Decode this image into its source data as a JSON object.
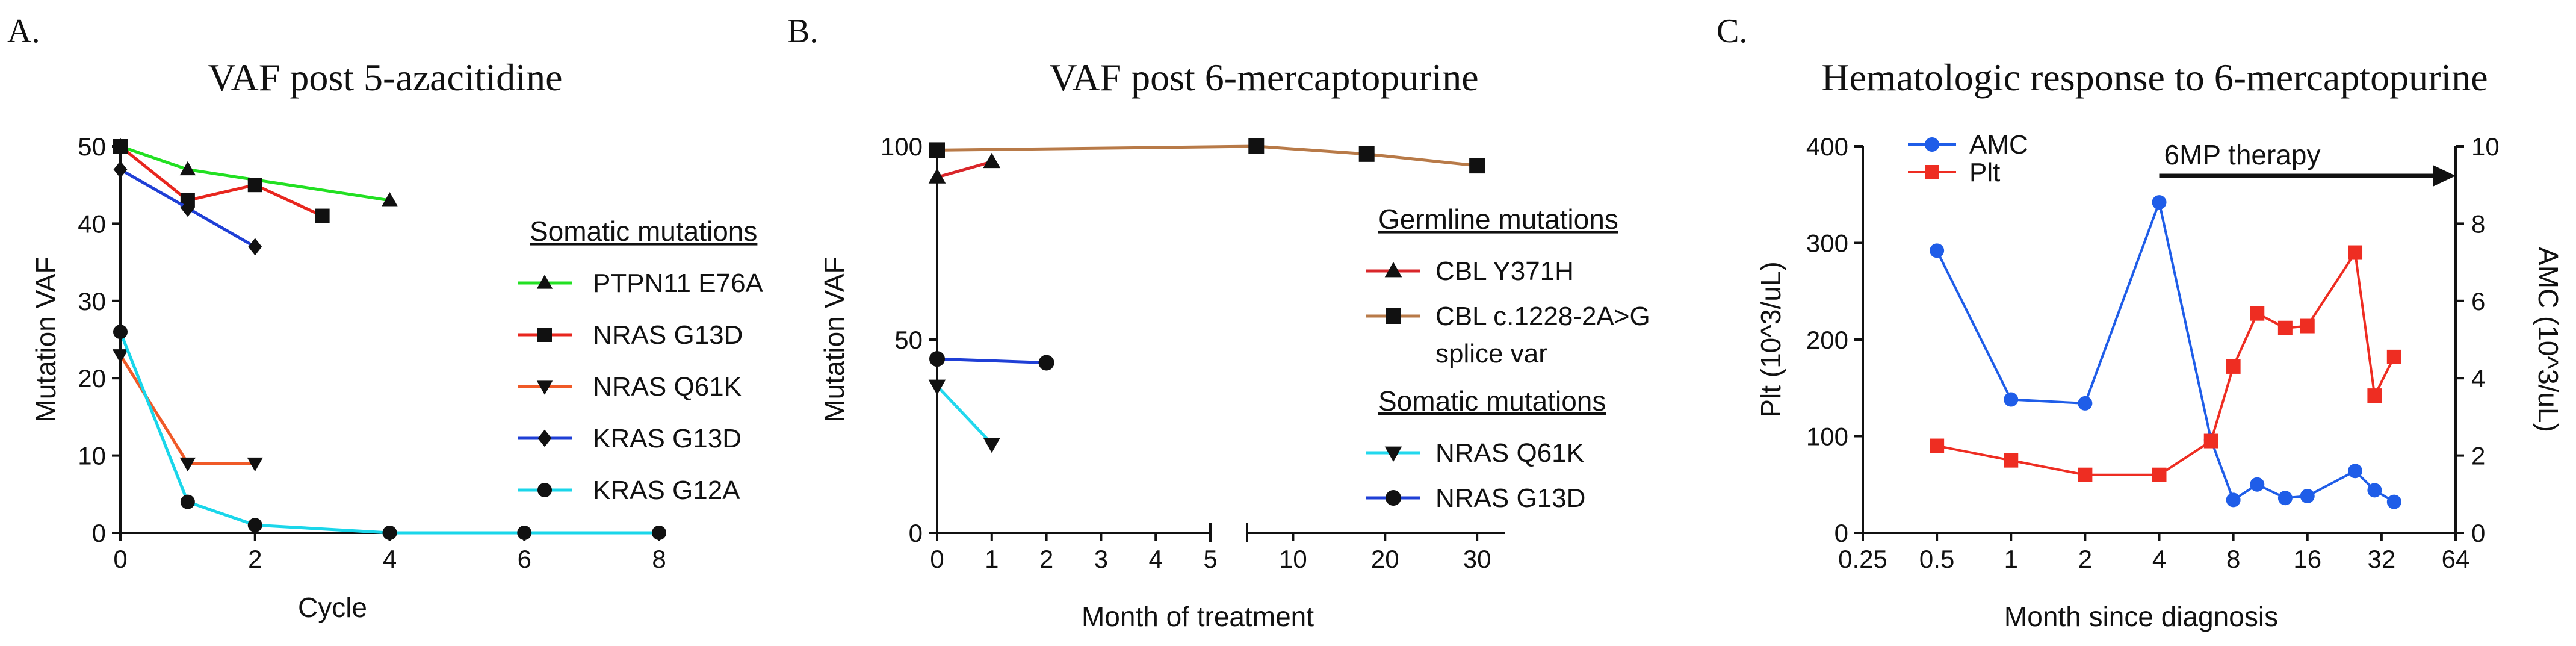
{
  "chart_data": [
    {
      "type": "line",
      "panel_label": "A.",
      "title": "VAF post 5-azacitidine",
      "xlabel": "Cycle",
      "ylabel": "Mutation VAF",
      "xlim": [
        0,
        8
      ],
      "ylim": [
        0,
        50
      ],
      "xticks": [
        0,
        2,
        4,
        6,
        8
      ],
      "yticks": [
        0,
        10,
        20,
        30,
        40,
        50
      ],
      "legend_title": "Somatic mutations",
      "series": [
        {
          "name": "PTPN11 E76A",
          "color": "#22e022",
          "marker": "triangle",
          "x": [
            0,
            1,
            4
          ],
          "y": [
            50,
            47,
            43
          ]
        },
        {
          "name": "NRAS G13D",
          "color": "#e8261e",
          "marker": "square",
          "x": [
            0,
            1,
            2,
            3
          ],
          "y": [
            50,
            43,
            45,
            41
          ]
        },
        {
          "name": "NRAS Q61K",
          "color": "#f05a28",
          "marker": "triangle-down",
          "x": [
            0,
            1,
            2
          ],
          "y": [
            23,
            9,
            9
          ]
        },
        {
          "name": "KRAS G13D",
          "color": "#1f3fd6",
          "marker": "diamond",
          "x": [
            0,
            1,
            2
          ],
          "y": [
            47,
            42,
            37
          ]
        },
        {
          "name": "KRAS G12A",
          "color": "#1ad6ea",
          "marker": "circle",
          "x": [
            0,
            1,
            2,
            4,
            6,
            8
          ],
          "y": [
            26,
            4,
            1,
            0,
            0,
            0
          ]
        }
      ]
    },
    {
      "type": "line",
      "panel_label": "B.",
      "title": "VAF post 6-mercaptopurine",
      "xlabel": "Month of treatment",
      "ylabel": "Mutation VAF",
      "xlim_segment1": [
        0,
        5
      ],
      "xlim_segment2": [
        5,
        33
      ],
      "xticks_segment1": [
        0,
        1,
        2,
        3,
        4,
        5
      ],
      "xticks_segment2": [
        10,
        20,
        30
      ],
      "ylim": [
        0,
        100
      ],
      "yticks": [
        0,
        50,
        100
      ],
      "legend_groups": [
        {
          "title": "Germline mutations",
          "items": [
            0,
            1
          ]
        },
        {
          "title": "Somatic mutations",
          "items": [
            2,
            3
          ]
        }
      ],
      "series": [
        {
          "name": "CBL Y371H",
          "color": "#d9262a",
          "marker": "triangle",
          "x": [
            0,
            1
          ],
          "y": [
            92,
            96
          ]
        },
        {
          "name": "CBL c.1228-2A>G",
          "name_line2": "splice var",
          "color": "#b87a48",
          "marker": "square",
          "x": [
            0,
            6,
            18,
            30
          ],
          "y": [
            99,
            100,
            98,
            95
          ]
        },
        {
          "name": "NRAS Q61K",
          "color": "#22d8ee",
          "marker": "triangle-down",
          "x": [
            0,
            1
          ],
          "y": [
            38,
            23
          ]
        },
        {
          "name": "NRAS G13D",
          "color": "#1f3fd6",
          "marker": "circle",
          "x": [
            0,
            2
          ],
          "y": [
            45,
            44
          ]
        }
      ]
    },
    {
      "type": "line",
      "panel_label": "C.",
      "title": "Hematologic response to 6-mercaptopurine",
      "xlabel": "Month since diagnosis",
      "ylabel_left": "Plt (10^3/uL)",
      "ylabel_right": "AMC (10^3/uL)",
      "xscale": "log2",
      "xlim": [
        0.25,
        64
      ],
      "xticks": [
        0.25,
        0.5,
        1,
        2,
        4,
        8,
        16,
        32,
        64
      ],
      "xtick_labels": [
        "0.25",
        "0.5",
        "1",
        "2",
        "4",
        "8",
        "16",
        "32",
        "64"
      ],
      "ylim_left": [
        0,
        400
      ],
      "yticks_left": [
        0,
        100,
        200,
        300,
        400
      ],
      "ylim_right": [
        0,
        10
      ],
      "yticks_right": [
        0,
        2,
        4,
        6,
        8,
        10
      ],
      "annotation": {
        "text": "6MP therapy",
        "x_start": 4,
        "x_end": 64
      },
      "legend_position": "top-left",
      "series": [
        {
          "name": "AMC",
          "axis": "right",
          "color": "#1f5de8",
          "marker": "circle",
          "x": [
            0.5,
            1,
            2,
            4,
            6.5,
            8,
            10,
            13,
            16,
            25,
            30,
            36
          ],
          "y": [
            7.3,
            3.45,
            3.35,
            8.55,
            2.4,
            0.85,
            1.25,
            0.9,
            0.95,
            1.6,
            1.1,
            0.8
          ]
        },
        {
          "name": "Plt",
          "axis": "left",
          "color": "#ee2d22",
          "marker": "square",
          "x": [
            0.5,
            1,
            2,
            4,
            6.5,
            8,
            10,
            13,
            16,
            25,
            30,
            36
          ],
          "y": [
            90,
            75,
            60,
            60,
            95,
            172,
            227,
            212,
            214,
            290,
            142,
            182
          ]
        }
      ]
    }
  ]
}
